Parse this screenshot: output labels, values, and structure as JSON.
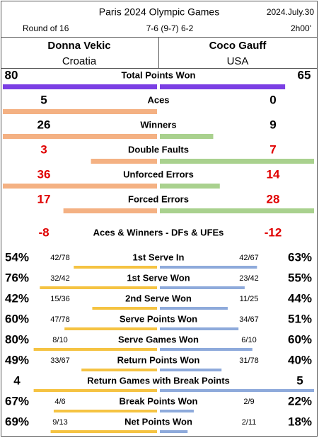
{
  "header": {
    "title": "Paris 2024 Olympic Games",
    "date": "2024.July.30",
    "round": "Round of 16",
    "score": "7-6 (9-7) 6-2",
    "duration": "2h00'"
  },
  "players": [
    {
      "name": "Donna Vekic",
      "country": "Croatia"
    },
    {
      "name": "Coco Gauff",
      "country": "USA"
    }
  ],
  "stats": [
    {
      "label": "Total Points Won",
      "left": 80,
      "right": 65,
      "bars": "count",
      "colors": [
        "#7b3fe4",
        "#7b3fe4"
      ],
      "value_color": "#000000"
    },
    {
      "label": "Aces",
      "left": 5,
      "right": 0,
      "bars": "count",
      "colors": [
        "#f4b183",
        "#a9d18e"
      ],
      "value_color": "#000000"
    },
    {
      "label": "Winners",
      "left": 26,
      "right": 9,
      "bars": "count",
      "colors": [
        "#f4b183",
        "#a9d18e"
      ],
      "value_color": "#000000"
    },
    {
      "label": "Double Faults",
      "left": 3,
      "right": 7,
      "bars": "count",
      "colors": [
        "#f4b183",
        "#a9d18e"
      ],
      "value_color": "#e00000"
    },
    {
      "label": "Unforced Errors",
      "left": 36,
      "right": 14,
      "bars": "count",
      "colors": [
        "#f4b183",
        "#a9d18e"
      ],
      "value_color": "#e00000"
    },
    {
      "label": "Forced Errors",
      "left": 17,
      "right": 28,
      "bars": "count",
      "colors": [
        "#f4b183",
        "#a9d18e"
      ],
      "value_color": "#e00000"
    },
    {
      "label": "Aces & Winners - DFs & UFEs",
      "left": -8,
      "right": -12,
      "bars": "none",
      "value_color": "#e00000"
    },
    {
      "label": "1st Serve In",
      "left": 54,
      "left_label": "54%",
      "left_detail": "42/78",
      "right": 63,
      "right_label": "63%",
      "right_detail": "42/67",
      "bars": "percent",
      "colors": [
        "#f5c342",
        "#8eaadb"
      ],
      "value_color": "#000000"
    },
    {
      "label": "1st Serve Won",
      "left": 76,
      "left_label": "76%",
      "left_detail": "32/42",
      "right": 55,
      "right_label": "55%",
      "right_detail": "23/42",
      "bars": "percent",
      "colors": [
        "#f5c342",
        "#8eaadb"
      ],
      "value_color": "#000000"
    },
    {
      "label": "2nd Serve Won",
      "left": 42,
      "left_label": "42%",
      "left_detail": "15/36",
      "right": 44,
      "right_label": "44%",
      "right_detail": "11/25",
      "bars": "percent",
      "colors": [
        "#f5c342",
        "#8eaadb"
      ],
      "value_color": "#000000"
    },
    {
      "label": "Serve Points Won",
      "left": 60,
      "left_label": "60%",
      "left_detail": "47/78",
      "right": 51,
      "right_label": "51%",
      "right_detail": "34/67",
      "bars": "percent",
      "colors": [
        "#f5c342",
        "#8eaadb"
      ],
      "value_color": "#000000"
    },
    {
      "label": "Serve Games Won",
      "left": 80,
      "left_label": "80%",
      "left_detail": "8/10",
      "right": 60,
      "right_label": "60%",
      "right_detail": "6/10",
      "bars": "percent",
      "colors": [
        "#f5c342",
        "#8eaadb"
      ],
      "value_color": "#000000"
    },
    {
      "label": "Return Points Won",
      "left": 49,
      "left_label": "49%",
      "left_detail": "33/67",
      "right": 40,
      "right_label": "40%",
      "right_detail": "31/78",
      "bars": "percent",
      "colors": [
        "#f5c342",
        "#8eaadb"
      ],
      "value_color": "#000000"
    },
    {
      "label": "Return Games with Break Points",
      "left": 4,
      "right": 5,
      "bars": "count",
      "colors": [
        "#f5c342",
        "#8eaadb"
      ],
      "value_color": "#000000"
    },
    {
      "label": "Break Points Won",
      "left": 67,
      "left_label": "67%",
      "left_detail": "4/6",
      "right": 22,
      "right_label": "22%",
      "right_detail": "2/9",
      "bars": "percent",
      "colors": [
        "#f5c342",
        "#8eaadb"
      ],
      "value_color": "#000000"
    },
    {
      "label": "Net Points Won",
      "left": 69,
      "left_label": "69%",
      "left_detail": "9/13",
      "right": 18,
      "right_label": "18%",
      "right_detail": "2/11",
      "bars": "percent",
      "colors": [
        "#f5c342",
        "#8eaadb"
      ],
      "value_color": "#000000"
    }
  ]
}
